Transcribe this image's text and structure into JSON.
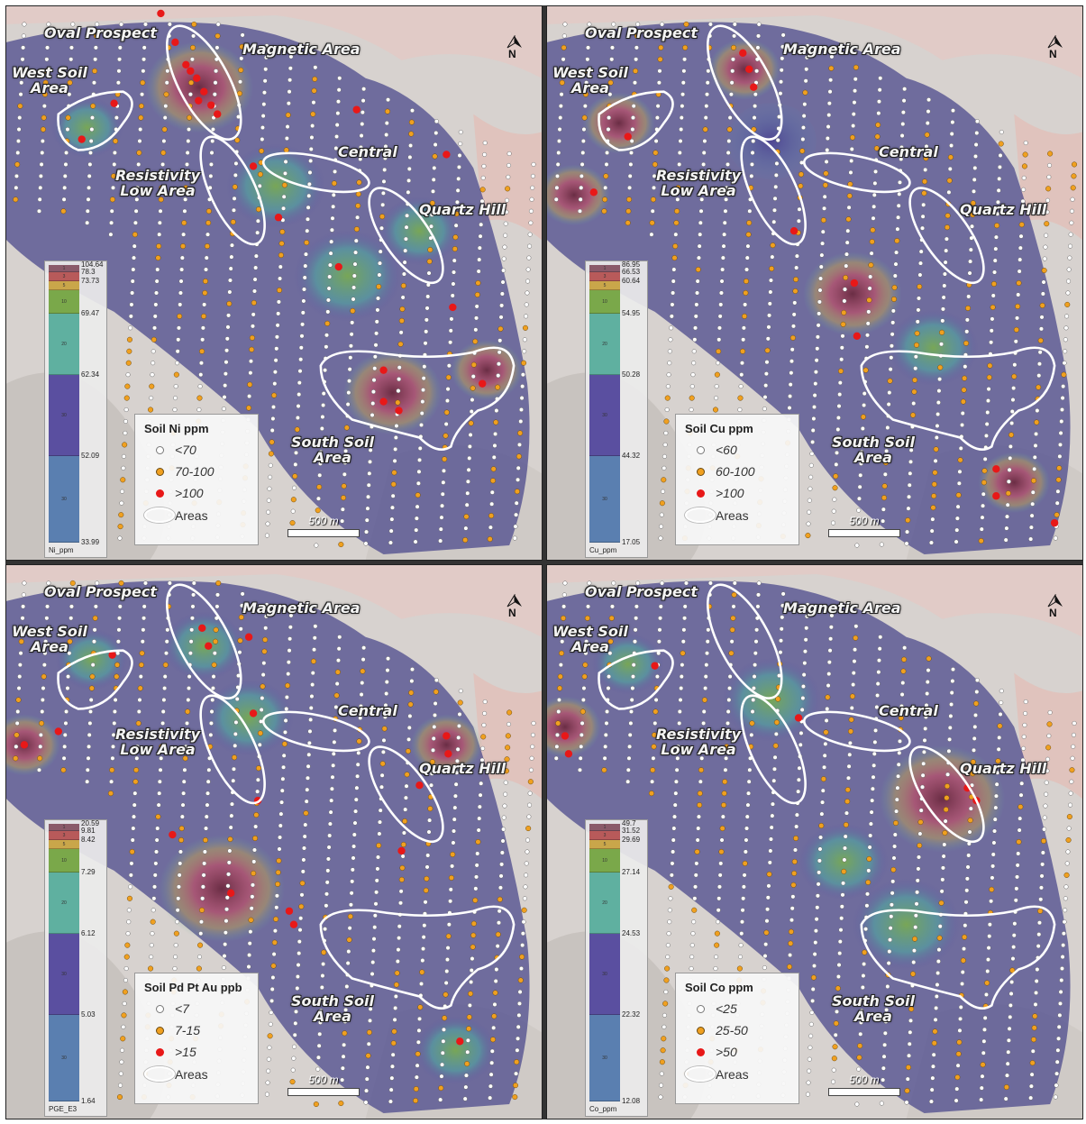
{
  "panels": [
    {
      "legend_title": "Soil Ni ppm",
      "classes": [
        "<70",
        "70-100",
        ">100"
      ],
      "areas_label": "Areas",
      "colorbar_ticks": [
        "104.64",
        "78.3",
        "73.73",
        "69.47",
        "62.34",
        "52.09",
        "33.99"
      ],
      "colorbar_field": "Ni_ppm",
      "colorbar_seg_labels": [
        "1",
        "3",
        "5",
        "10",
        "20",
        "30",
        "30"
      ],
      "labels": {
        "oval_prospect": "Oval Prospect",
        "magnetic_area": "Magnetic Area",
        "west_soil_area": "West Soil\nArea",
        "resistivity_low_area": "Resistivity\nLow Area",
        "central": "Central",
        "quartz_hill": "Quartz Hill",
        "south_soil_area": "South Soil\nArea"
      },
      "scale_label": "500 m",
      "north_label": "N"
    },
    {
      "legend_title": "Soil Cu ppm",
      "classes": [
        "<60",
        "60-100",
        ">100"
      ],
      "areas_label": "Areas",
      "colorbar_ticks": [
        "86.95",
        "66.53",
        "60.64",
        "54.95",
        "50.28",
        "44.32",
        "17.05"
      ],
      "colorbar_field": "Cu_ppm",
      "colorbar_seg_labels": [
        "1",
        "3",
        "5",
        "10",
        "20",
        "30",
        "30"
      ],
      "labels": {
        "oval_prospect": "Oval Prospect",
        "magnetic_area": "Magnetic Area",
        "west_soil_area": "West Soil\nArea",
        "resistivity_low_area": "Resistivity\nLow Area",
        "central": "Central",
        "quartz_hill": "Quartz Hill",
        "south_soil_area": "South Soil\nArea"
      },
      "scale_label": "500 m",
      "north_label": "N"
    },
    {
      "legend_title": "Soil Pd Pt Au ppb",
      "classes": [
        "<7",
        "7-15",
        ">15"
      ],
      "areas_label": "Areas",
      "colorbar_ticks": [
        "20.59",
        "9.81",
        "8.42",
        "7.29",
        "6.12",
        "5.03",
        "1.64"
      ],
      "colorbar_field": "PGE_E3",
      "colorbar_seg_labels": [
        "1",
        "3",
        "5",
        "10",
        "20",
        "30",
        "30"
      ],
      "labels": {
        "oval_prospect": "Oval Prospect",
        "magnetic_area": "Magnetic Area",
        "west_soil_area": "West Soil\nArea",
        "resistivity_low_area": "Resistivity\nLow Area",
        "central": "Central",
        "quartz_hill": "Quartz Hill",
        "south_soil_area": "South Soil\nArea"
      },
      "scale_label": "500 m",
      "north_label": "N"
    },
    {
      "legend_title": "Soil Co ppm",
      "classes": [
        "<25",
        "25-50",
        ">50"
      ],
      "areas_label": "Areas",
      "colorbar_ticks": [
        "49.7",
        "31.52",
        "29.69",
        "27.14",
        "24.53",
        "22.32",
        "12.08"
      ],
      "colorbar_field": "Co_ppm",
      "colorbar_seg_labels": [
        "1",
        "3",
        "5",
        "10",
        "20",
        "30",
        "30"
      ],
      "labels": {
        "oval_prospect": "Oval Prospect",
        "magnetic_area": "Magnetic Area",
        "west_soil_area": "West Soil\nArea",
        "resistivity_low_area": "Resistivity\nLow Area",
        "central": "Central",
        "quartz_hill": "Quartz Hill",
        "south_soil_area": "South Soil\nArea"
      },
      "scale_label": "500 m",
      "north_label": "N"
    }
  ],
  "colors": {
    "class_low": "#ffffff",
    "class_mid": "#f0a020",
    "class_high": "#e81818",
    "ramp": [
      "#8a5a6a",
      "#b85a5a",
      "#c9a64a",
      "#7aa84a",
      "#5fb0a0",
      "#5a4fa0",
      "#5a7fb0"
    ]
  }
}
